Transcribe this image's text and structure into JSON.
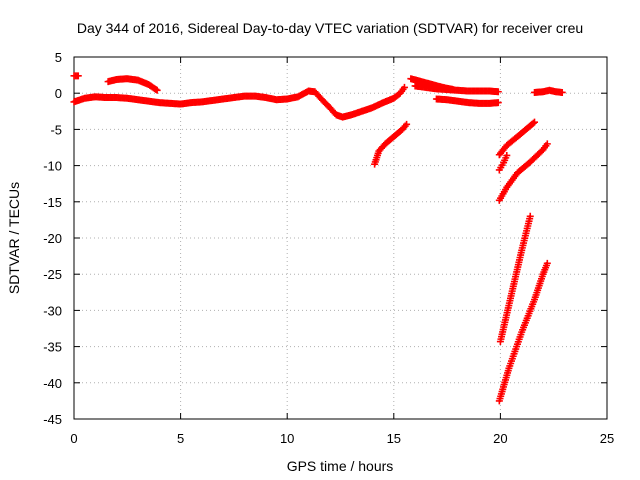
{
  "chart_data": {
    "type": "scatter",
    "title": "Day 344 of 2016, Sidereal Day-to-day VTEC variation (SDTVAR) for receiver creu",
    "xlabel": "GPS time / hours",
    "ylabel": "SDTVAR / TECUs",
    "xlim": [
      0,
      25
    ],
    "ylim": [
      -45,
      5
    ],
    "xticks": [
      0,
      5,
      10,
      15,
      20,
      25
    ],
    "yticks": [
      5,
      0,
      -5,
      -10,
      -15,
      -20,
      -25,
      -30,
      -35,
      -40,
      -45
    ],
    "grid": true,
    "legend": "none",
    "marker": "plus",
    "color": "#ff0000",
    "series": [
      {
        "x": [
          0.0,
          0.2
        ],
        "y": [
          2.4,
          2.4
        ]
      },
      {
        "x": [
          0.0,
          0.5,
          1.0,
          1.5,
          2.0,
          2.5,
          3.0,
          3.5,
          4.0,
          4.5,
          5.0,
          5.5,
          6.0,
          6.5,
          7.0,
          7.5,
          8.0,
          8.5,
          9.0,
          9.5,
          10.0,
          10.5,
          11.0,
          11.3,
          11.6,
          12.0,
          12.3,
          12.6,
          13.0,
          13.5,
          14.0,
          14.5,
          15.0,
          15.3,
          15.5
        ],
        "y": [
          -1.2,
          -0.7,
          -0.5,
          -0.6,
          -0.6,
          -0.7,
          -0.9,
          -1.1,
          -1.3,
          -1.4,
          -1.5,
          -1.3,
          -1.2,
          -1.0,
          -0.8,
          -0.6,
          -0.4,
          -0.4,
          -0.6,
          -0.9,
          -0.8,
          -0.5,
          0.3,
          0.2,
          -0.8,
          -2.0,
          -3.0,
          -3.3,
          -3.0,
          -2.5,
          -2.0,
          -1.3,
          -0.7,
          0.0,
          0.8
        ]
      },
      {
        "x": [
          1.6,
          2.0,
          2.5,
          3.0,
          3.5,
          3.9
        ],
        "y": [
          1.6,
          1.9,
          2.0,
          1.8,
          1.2,
          0.4
        ]
      },
      {
        "x": [
          15.8,
          16.3,
          16.8,
          17.3,
          17.8
        ],
        "y": [
          2.0,
          1.6,
          1.2,
          0.8,
          0.5
        ]
      },
      {
        "x": [
          16.0,
          16.5,
          17.0,
          17.5,
          18.0,
          18.5,
          19.0,
          19.5,
          19.9
        ],
        "y": [
          1.0,
          0.8,
          0.6,
          0.5,
          0.4,
          0.3,
          0.3,
          0.3,
          0.2
        ]
      },
      {
        "x": [
          17.0,
          17.5,
          18.0,
          18.5,
          19.0,
          19.5,
          19.9
        ],
        "y": [
          -0.8,
          -0.9,
          -1.1,
          -1.3,
          -1.4,
          -1.4,
          -1.3
        ]
      },
      {
        "x": [
          14.1,
          14.3,
          14.6,
          15.0,
          15.4,
          15.6
        ],
        "y": [
          -9.8,
          -8.0,
          -7.0,
          -6.0,
          -5.0,
          -4.3
        ]
      },
      {
        "x": [
          19.95,
          20.3,
          20.8,
          21.2,
          21.6
        ],
        "y": [
          -8.5,
          -7.2,
          -6.0,
          -5.0,
          -4.0
        ]
      },
      {
        "x": [
          19.95,
          20.15,
          20.3
        ],
        "y": [
          -10.6,
          -9.6,
          -8.6
        ]
      },
      {
        "x": [
          19.95,
          20.3,
          20.8,
          21.4,
          22.0,
          22.2
        ],
        "y": [
          -14.8,
          -13.0,
          -11.0,
          -9.5,
          -7.8,
          -7.0
        ]
      },
      {
        "x": [
          20.0,
          20.5,
          21.0,
          21.4
        ],
        "y": [
          -34.3,
          -28.0,
          -21.7,
          -17.0
        ]
      },
      {
        "x": [
          19.95,
          20.4,
          21.0,
          21.6,
          22.0,
          22.2
        ],
        "y": [
          -42.5,
          -38.0,
          -33.0,
          -28.5,
          -25.0,
          -23.5
        ]
      },
      {
        "x": [
          21.6,
          22.0,
          22.3,
          22.6,
          22.9
        ],
        "y": [
          0.1,
          0.2,
          0.4,
          0.2,
          0.1
        ]
      }
    ]
  }
}
